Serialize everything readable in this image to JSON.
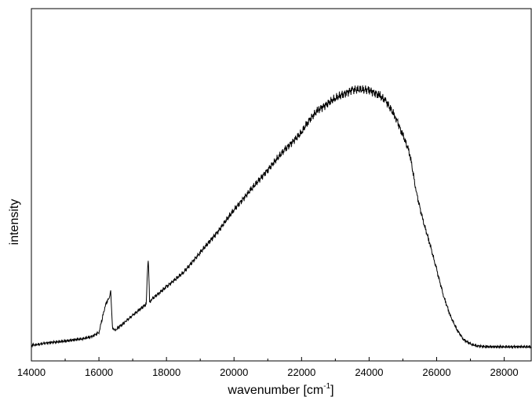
{
  "chart_data": {
    "type": "line",
    "title": "",
    "xlabel": "wavenumber [cm",
    "xlabel_sup": "-1",
    "xlabel_end": "]",
    "ylabel": "intensity",
    "xlim": [
      14000,
      28800
    ],
    "ylim": [
      0,
      1
    ],
    "grid": false,
    "y_ticks_shown": false,
    "x_ticks": [
      14000,
      16000,
      18000,
      20000,
      22000,
      24000,
      26000,
      28000
    ],
    "x_tick_labels": [
      "14000",
      "16000",
      "18000",
      "20000",
      "22000",
      "24000",
      "26000",
      "28000"
    ],
    "series": [
      {
        "color": "#000000",
        "x": [
          14000,
          14500,
          15000,
          15500,
          15800,
          16000,
          16100,
          16200,
          16300,
          16350,
          16400,
          16450,
          16500,
          16600,
          16700,
          16800,
          17000,
          17200,
          17400,
          17440,
          17460,
          17480,
          17500,
          17550,
          17600,
          17800,
          18000,
          18500,
          19000,
          19500,
          20000,
          20500,
          21000,
          21500,
          22000,
          22200,
          22500,
          23000,
          23500,
          24000,
          24300,
          24500,
          24800,
          25000,
          25200,
          25400,
          25600,
          25800,
          26000,
          26200,
          26400,
          26600,
          26800,
          27000,
          27200,
          27500,
          28000,
          28800
        ],
        "y": [
          0.005,
          0.014,
          0.02,
          0.028,
          0.036,
          0.05,
          0.1,
          0.15,
          0.17,
          0.19,
          0.07,
          0.058,
          0.06,
          0.07,
          0.08,
          0.09,
          0.11,
          0.13,
          0.15,
          0.27,
          0.31,
          0.24,
          0.16,
          0.16,
          0.17,
          0.19,
          0.21,
          0.26,
          0.33,
          0.4,
          0.48,
          0.55,
          0.62,
          0.69,
          0.75,
          0.79,
          0.83,
          0.87,
          0.9,
          0.9,
          0.88,
          0.86,
          0.8,
          0.74,
          0.68,
          0.54,
          0.44,
          0.36,
          0.27,
          0.18,
          0.11,
          0.06,
          0.025,
          0.01,
          0.003,
          0.0,
          0.0,
          0.0
        ]
      }
    ]
  }
}
